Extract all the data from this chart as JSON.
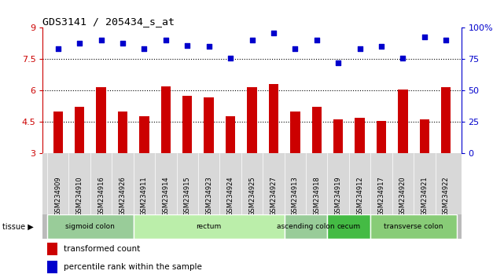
{
  "title": "GDS3141 / 205434_s_at",
  "samples": [
    "GSM234909",
    "GSM234910",
    "GSM234916",
    "GSM234926",
    "GSM234911",
    "GSM234914",
    "GSM234915",
    "GSM234923",
    "GSM234924",
    "GSM234925",
    "GSM234927",
    "GSM234913",
    "GSM234918",
    "GSM234919",
    "GSM234912",
    "GSM234917",
    "GSM234920",
    "GSM234921",
    "GSM234922"
  ],
  "bar_values": [
    5.0,
    5.2,
    6.15,
    5.0,
    4.75,
    6.2,
    5.75,
    5.65,
    4.75,
    6.15,
    6.3,
    5.0,
    5.2,
    4.6,
    4.7,
    4.55,
    6.05,
    4.6,
    6.15
  ],
  "dot_values_pct": [
    83,
    88,
    90,
    88,
    83,
    90,
    86,
    85,
    76,
    90,
    96,
    83,
    90,
    72,
    83,
    85,
    76,
    93,
    90
  ],
  "bar_color": "#cc0000",
  "dot_color": "#0000cc",
  "ylim_left": [
    3,
    9
  ],
  "yticks_left": [
    3,
    4.5,
    6,
    7.5,
    9
  ],
  "ytick_labels_left": [
    "3",
    "4.5",
    "6",
    "7.5",
    "9"
  ],
  "yticks_right": [
    0,
    25,
    50,
    75,
    100
  ],
  "ytick_labels_right": [
    "0",
    "25",
    "50",
    "75",
    "100%"
  ],
  "hlines": [
    4.5,
    6.0,
    7.5
  ],
  "tissue_groups": [
    {
      "label": "sigmoid colon",
      "start": 0,
      "end": 4,
      "color": "#99cc99"
    },
    {
      "label": "rectum",
      "start": 4,
      "end": 11,
      "color": "#bbeeaa"
    },
    {
      "label": "ascending colon",
      "start": 11,
      "end": 13,
      "color": "#99cc99"
    },
    {
      "label": "cecum",
      "start": 13,
      "end": 15,
      "color": "#44bb44"
    },
    {
      "label": "transverse colon",
      "start": 15,
      "end": 19,
      "color": "#88cc77"
    }
  ],
  "legend_bar_label": "transformed count",
  "legend_dot_label": "percentile rank within the sample",
  "bar_width": 0.45,
  "xlim": [
    -0.7,
    18.7
  ]
}
